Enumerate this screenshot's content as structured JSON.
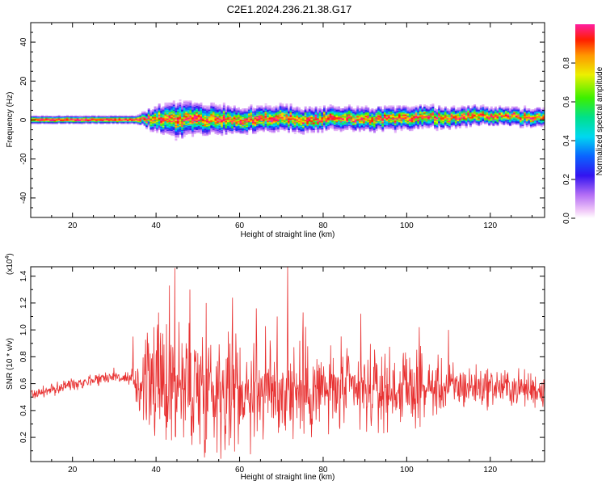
{
  "figure": {
    "title": "C2E1.2024.236.21.38.G17"
  },
  "chart_data": [
    {
      "type": "heatmap",
      "title": "C2E1.2024.236.21.38.G17",
      "xlabel": "Height of straight line (km)",
      "ylabel": "Frequency (Hz)",
      "xlim": [
        10,
        133
      ],
      "ylim": [
        -50,
        50
      ],
      "xticks": [
        20,
        40,
        60,
        80,
        100,
        120
      ],
      "yticks": [
        -40,
        -20,
        0,
        20,
        40
      ],
      "colorbar": {
        "label": "Normalized spectral amplitude",
        "range": [
          0,
          1
        ],
        "ticks": [
          "0.0",
          "0.2",
          "0.4",
          "0.6",
          "0.8"
        ],
        "colormap": "rainbow (magenta-blue-cyan-green-yellow-red)"
      },
      "ridge_frequency_hz": {
        "x": [
          10,
          20,
          30,
          35,
          40,
          45,
          50,
          55,
          60,
          65,
          70,
          75,
          80,
          85,
          90,
          95,
          100,
          105,
          110,
          115,
          120,
          125,
          130,
          133
        ],
        "y": [
          0,
          0,
          0,
          0,
          0.5,
          0,
          0.5,
          0,
          -0.5,
          0.5,
          1,
          0,
          0.5,
          1,
          0,
          0.5,
          1,
          1.5,
          0.5,
          2,
          2,
          1.5,
          1,
          1
        ]
      },
      "spread_hz": {
        "x": [
          10,
          35,
          40,
          45,
          50,
          60,
          70,
          80,
          90,
          100,
          110,
          120,
          133
        ],
        "y": [
          1.5,
          1.5,
          5,
          7,
          6,
          5,
          5,
          4.5,
          4.5,
          4.5,
          4,
          3.5,
          3.5
        ]
      }
    },
    {
      "type": "line",
      "xlabel": "Height of straight line (km)",
      "ylabel": "SNR (10 * v/v)",
      "y_multiplier": "(x10",
      "y_multiplier_exp": "4",
      "y_multiplier_close": ")",
      "xlim": [
        10,
        133
      ],
      "ylim": [
        0.02,
        1.47
      ],
      "xticks": [
        20,
        40,
        60,
        80,
        100,
        120
      ],
      "yticks": [
        0.2,
        0.4,
        0.6,
        0.8,
        1.0,
        1.2,
        1.4
      ],
      "ytick_labels": [
        "0.2",
        "0.4",
        "0.6",
        "0.8",
        "1.0",
        "1.2",
        "1.4"
      ],
      "color": "#e83232",
      "mean": {
        "x": [
          10,
          15,
          20,
          25,
          30,
          34,
          40,
          50,
          60,
          70,
          80,
          90,
          100,
          110,
          120,
          133
        ],
        "y": [
          0.52,
          0.55,
          0.6,
          0.63,
          0.66,
          0.62,
          0.6,
          0.58,
          0.56,
          0.55,
          0.55,
          0.54,
          0.56,
          0.57,
          0.58,
          0.55
        ]
      },
      "amplitude": {
        "x": [
          10,
          34,
          36,
          40,
          45,
          50,
          60,
          70,
          80,
          90,
          100,
          110,
          120,
          133
        ],
        "y": [
          0.06,
          0.07,
          0.25,
          0.4,
          0.48,
          0.45,
          0.38,
          0.36,
          0.3,
          0.27,
          0.24,
          0.17,
          0.13,
          0.12
        ]
      },
      "peaks": [
        {
          "x": 44.5,
          "y": 1.46
        },
        {
          "x": 43.2,
          "y": 1.33
        },
        {
          "x": 48.1,
          "y": 1.3
        },
        {
          "x": 71.5,
          "y": 1.47
        },
        {
          "x": 58.3,
          "y": 1.24
        },
        {
          "x": 52.0,
          "y": 1.2
        },
        {
          "x": 64.0,
          "y": 1.16
        },
        {
          "x": 75.2,
          "y": 1.13
        },
        {
          "x": 89.0,
          "y": 1.12
        },
        {
          "x": 69.0,
          "y": 1.1
        },
        {
          "x": 103.0,
          "y": 1.02
        },
        {
          "x": 110.0,
          "y": 1.0
        },
        {
          "x": 39.5,
          "y": 1.02
        },
        {
          "x": 34.5,
          "y": 0.95
        }
      ]
    }
  ]
}
